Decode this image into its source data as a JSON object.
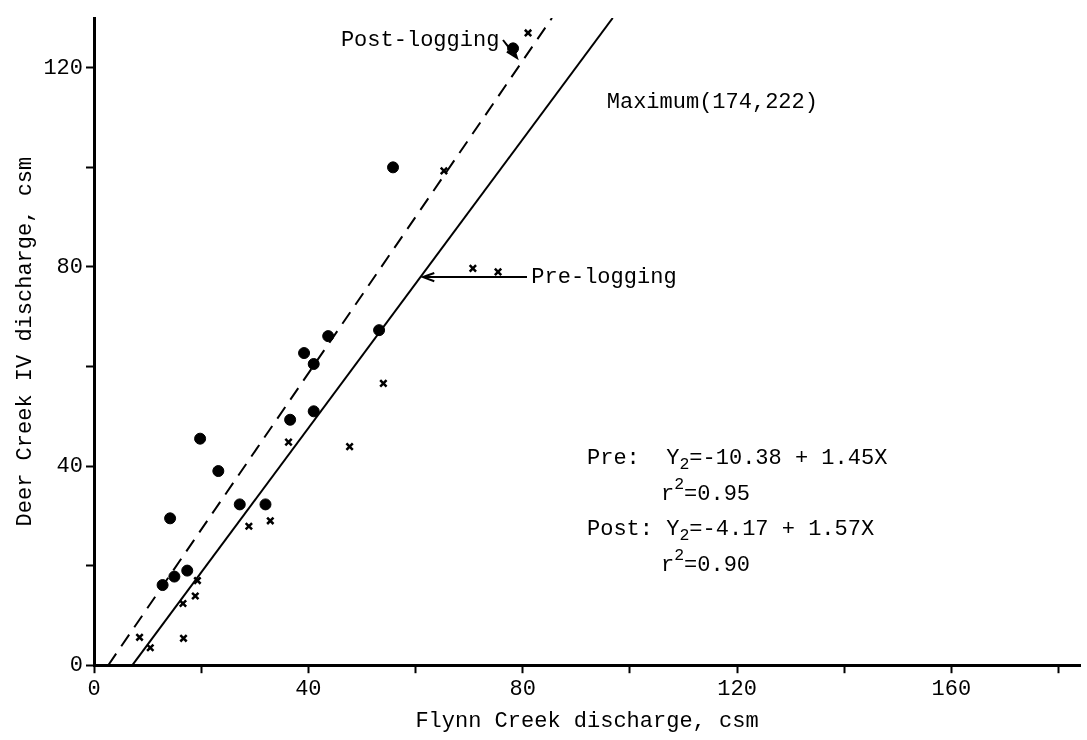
{
  "chart_data": {
    "type": "scatter",
    "xlabel": "Flynn Creek discharge, csm",
    "ylabel": "Deer Creek IV discharge, csm",
    "xlim": [
      0,
      184
    ],
    "ylim": [
      0,
      130
    ],
    "xticks": [
      0,
      {
        "value": 20,
        "label": null
      },
      40,
      {
        "value": 60,
        "label": null
      },
      80,
      {
        "value": 100,
        "label": null
      },
      120,
      {
        "value": 140,
        "label": null
      },
      160,
      {
        "value": 180,
        "label": null
      }
    ],
    "yticks": [
      0,
      {
        "value": 20,
        "label": null
      },
      40,
      {
        "value": 60,
        "label": null
      },
      80,
      {
        "value": 100,
        "label": null
      },
      120
    ],
    "grid": false,
    "legend": false,
    "series": [
      {
        "type": "scatter",
        "marker": "circle",
        "color": "#000000",
        "x": [
          19.8,
          23.2,
          14.2,
          27.2,
          32.0,
          36.6,
          39.2,
          41.0,
          43.7,
          41.0,
          53.2,
          17.4,
          15.0,
          12.8,
          55.8,
          78.2
        ],
        "values": [
          45.5,
          39.0,
          29.5,
          32.3,
          32.3,
          49.3,
          62.7,
          60.5,
          66.1,
          51.0,
          67.3,
          19.0,
          17.8,
          16.1,
          100.0,
          123.9
        ]
      },
      {
        "type": "scatter",
        "marker": "cross",
        "color": "#000000",
        "x": [
          54.0,
          47.7,
          36.3,
          28.9,
          32.9,
          19.3,
          18.9,
          16.6,
          16.7,
          8.5,
          10.5,
          65.3,
          70.7,
          75.4,
          81.0
        ],
        "values": [
          56.6,
          43.9,
          44.8,
          27.9,
          29.0,
          17.0,
          13.9,
          12.4,
          5.4,
          5.6,
          3.5,
          99.3,
          79.7,
          79.0,
          127.0
        ]
      },
      {
        "type": "line",
        "marker": "none",
        "line_style": "solid",
        "color": "#000000",
        "x": [
          7.16,
          96.8
        ],
        "values": [
          0,
          130
        ]
      },
      {
        "type": "line",
        "marker": "none",
        "line_style": "dashed",
        "color": "#000000",
        "x": [
          2.66,
          85.46
        ],
        "values": [
          0,
          130
        ]
      }
    ],
    "annotations": [
      {
        "text": "Post-logging",
        "x": 79,
        "y": 122
      },
      "Pre-logging",
      "Maximum(174,222)",
      "Pre:  Y$_{2}$=-10.38 + 1.45X",
      "r$^{2}$=0.95",
      "Post: Y$_{2}$=-4.17 + 1.57X",
      "r$^{2}$=0.90"
    ]
  }
}
